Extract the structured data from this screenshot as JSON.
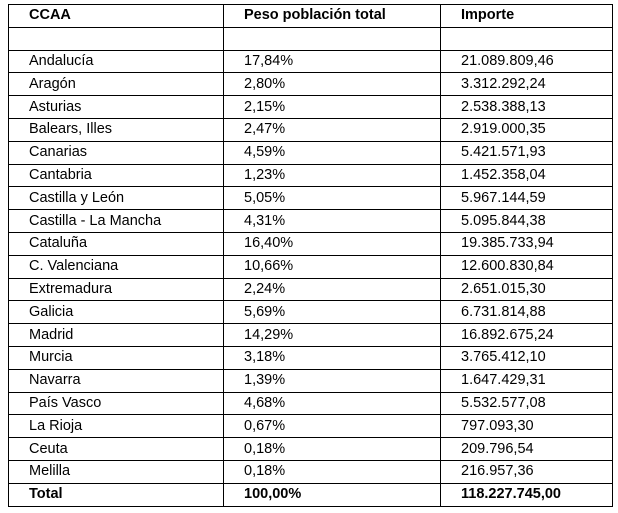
{
  "table": {
    "headers": [
      "CCAA",
      "Peso población total",
      "Importe"
    ],
    "rows": [
      [
        "Andalucía",
        "17,84%",
        "21.089.809,46"
      ],
      [
        "Aragón",
        "2,80%",
        "3.312.292,24"
      ],
      [
        "Asturias",
        "2,15%",
        "2.538.388,13"
      ],
      [
        "Balears, Illes",
        "2,47%",
        "2.919.000,35"
      ],
      [
        "Canarias",
        "4,59%",
        "5.421.571,93"
      ],
      [
        "Cantabria",
        "1,23%",
        "1.452.358,04"
      ],
      [
        "Castilla y León",
        "5,05%",
        "5.967.144,59"
      ],
      [
        "Castilla - La Mancha",
        "4,31%",
        "5.095.844,38"
      ],
      [
        "Cataluña",
        "16,40%",
        "19.385.733,94"
      ],
      [
        "C. Valenciana",
        "10,66%",
        "12.600.830,84"
      ],
      [
        "Extremadura",
        "2,24%",
        "2.651.015,30"
      ],
      [
        "Galicia",
        "5,69%",
        "6.731.814,88"
      ],
      [
        "Madrid",
        "14,29%",
        "16.892.675,24"
      ],
      [
        "Murcia",
        "3,18%",
        "3.765.412,10"
      ],
      [
        "Navarra",
        "1,39%",
        "1.647.429,31"
      ],
      [
        "País Vasco",
        "4,68%",
        "5.532.577,08"
      ],
      [
        "La Rioja",
        "0,67%",
        "797.093,30"
      ],
      [
        "Ceuta",
        "0,18%",
        "209.796,54"
      ],
      [
        "Melilla",
        "0,18%",
        "216.957,36"
      ]
    ],
    "total": [
      "Total",
      "100,00%",
      "118.227.745,00"
    ]
  }
}
